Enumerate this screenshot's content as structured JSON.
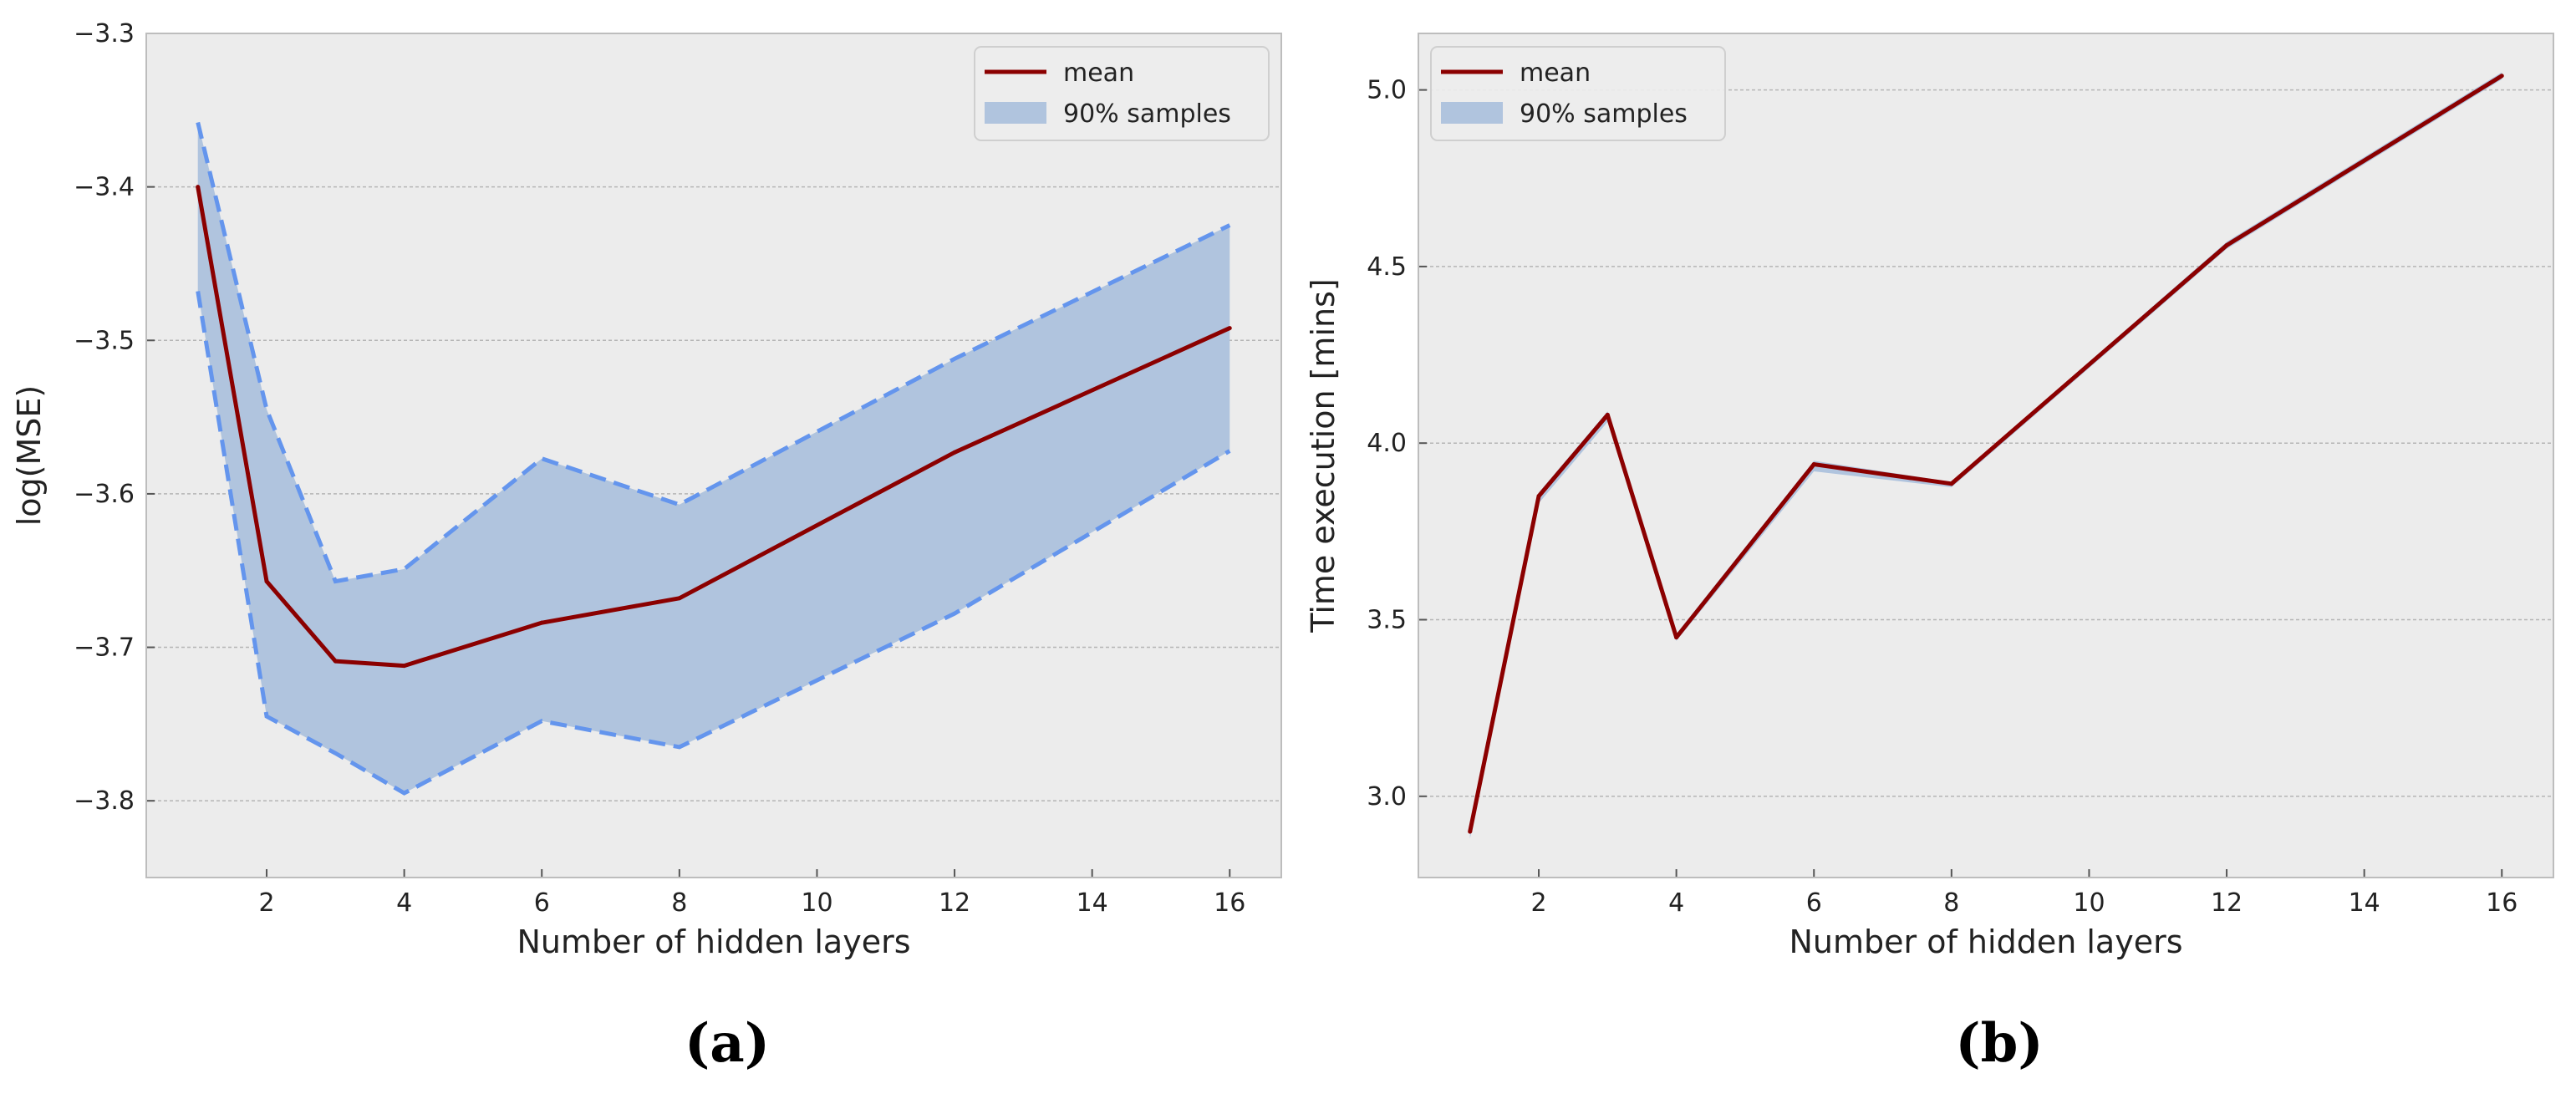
{
  "chart_data": [
    {
      "type": "line",
      "panel_caption": "(a)",
      "xlabel": "Number of hidden layers",
      "ylabel": "log(MSE)",
      "xlim": [
        0.25,
        16.75
      ],
      "ylim": [
        -3.85,
        -3.3
      ],
      "xticks": [
        2,
        4,
        6,
        8,
        10,
        12,
        14,
        16
      ],
      "yticks": [
        -3.8,
        -3.7,
        -3.6,
        -3.5,
        -3.4,
        -3.3
      ],
      "x": [
        1,
        2,
        3,
        4,
        6,
        8,
        12,
        16
      ],
      "series": [
        {
          "name": "mean",
          "color": "#8b0000",
          "values": [
            -3.4,
            -3.657,
            -3.709,
            -3.712,
            -3.684,
            -3.668,
            -3.573,
            -3.492
          ]
        }
      ],
      "band": {
        "name": "90% samples",
        "fill": "#b0c4de",
        "edge_color": "#6495ed",
        "upper": [
          -3.358,
          -3.545,
          -3.657,
          -3.649,
          -3.577,
          -3.607,
          -3.512,
          -3.425
        ],
        "lower": [
          -3.468,
          -3.745,
          -3.769,
          -3.795,
          -3.748,
          -3.765,
          -3.678,
          -3.572
        ]
      },
      "legend": {
        "placement": "upper-right",
        "entries": [
          "mean",
          "90% samples"
        ]
      },
      "grid": "y"
    },
    {
      "type": "line",
      "panel_caption": "(b)",
      "xlabel": "Number of hidden layers",
      "ylabel": "Time execution [mins]",
      "xlim": [
        0.25,
        16.75
      ],
      "ylim": [
        2.77,
        5.16
      ],
      "xticks": [
        2,
        4,
        6,
        8,
        10,
        12,
        14,
        16
      ],
      "yticks": [
        3.0,
        3.5,
        4.0,
        4.5,
        5.0
      ],
      "x": [
        1,
        2,
        3,
        4,
        6,
        8,
        12,
        16
      ],
      "series": [
        {
          "name": "mean",
          "color": "#8b0000",
          "values": [
            2.9,
            3.85,
            4.08,
            3.45,
            3.94,
            3.885,
            4.56,
            5.04
          ]
        }
      ],
      "band": {
        "name": "90% samples",
        "fill": "#b0c4de",
        "edge_color": "#6495ed",
        "upper": [
          2.92,
          3.86,
          4.09,
          3.46,
          3.95,
          3.89,
          4.57,
          5.05
        ],
        "lower": [
          2.88,
          3.83,
          4.06,
          3.44,
          3.92,
          3.875,
          4.55,
          5.03
        ]
      },
      "legend": {
        "placement": "upper-left",
        "entries": [
          "mean",
          "90% samples"
        ]
      },
      "grid": "y"
    }
  ]
}
